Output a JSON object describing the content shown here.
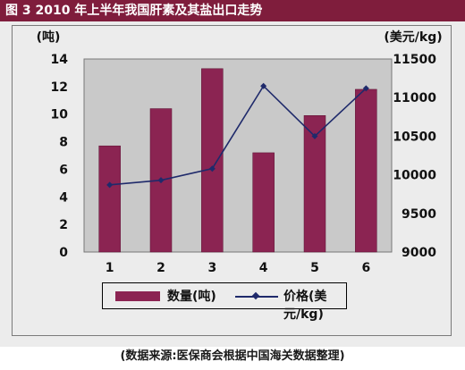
{
  "title": "图 3   2010 年上半年我国肝素及其盐出口走势",
  "source": "(数据来源:医保商会根据中国海关数据整理)",
  "colors": {
    "bar": "#8b2452",
    "line": "#1f2a6b",
    "plot_bg": "#c9c9c9",
    "title_bg": "#7f1d3c"
  },
  "chart_data": {
    "type": "bar",
    "categories": [
      "1",
      "2",
      "3",
      "4",
      "5",
      "6"
    ],
    "series": [
      {
        "name": "数量(吨)",
        "type": "bar",
        "axis": "left",
        "values": [
          7.7,
          10.4,
          13.3,
          7.2,
          9.9,
          11.8
        ]
      },
      {
        "name": "价格(美元/kg)",
        "type": "line",
        "axis": "right",
        "values": [
          9870,
          9930,
          10080,
          11150,
          10500,
          11120
        ]
      }
    ],
    "ylabel": "(吨)",
    "y2label": "(美元/kg)",
    "ylim": [
      0,
      14
    ],
    "y2lim": [
      9000,
      11500
    ],
    "yticks": [
      "0",
      "2",
      "4",
      "6",
      "8",
      "10",
      "12",
      "14"
    ],
    "y2ticks": [
      "9000",
      "9500",
      "10000",
      "10500",
      "11000",
      "11500"
    ],
    "legend_position": "bottom"
  }
}
